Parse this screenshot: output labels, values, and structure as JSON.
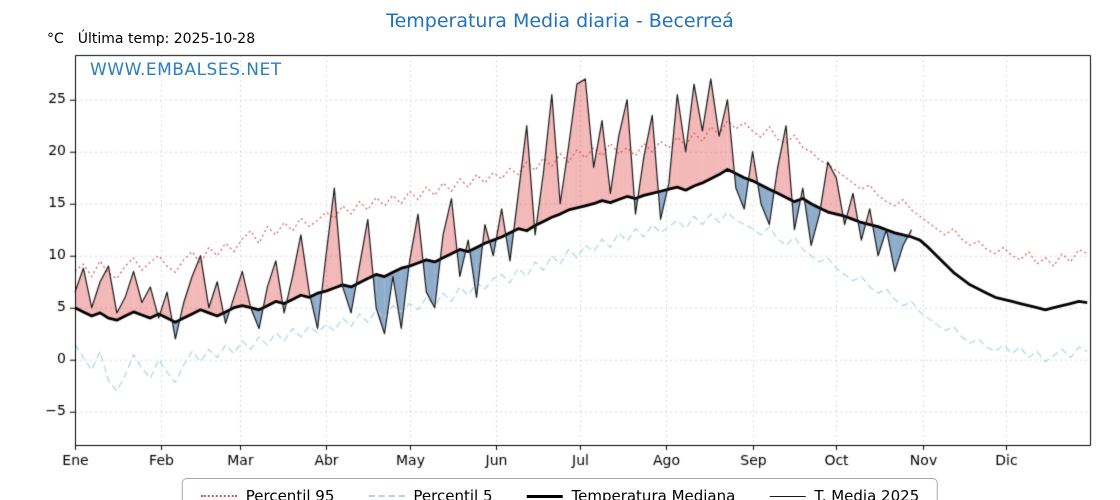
{
  "header": {
    "title": "Temperatura Media diaria - Becerreá",
    "y_unit": "°C",
    "last_temp_label": "Última temp: 2025-10-28",
    "watermark": "WWW.EMBALSES.NET"
  },
  "colors": {
    "title_blue": "#2273b8",
    "watermark_blue": "#2b7fbe",
    "grid": "#d9d9d9",
    "axis": "#000000"
  },
  "legend": {
    "items": [
      {
        "label": "Percentil 95"
      },
      {
        "label": "Percentil 5"
      },
      {
        "label": "Temperatura Mediana"
      },
      {
        "label": "T. Media 2025"
      }
    ]
  },
  "chart_data": {
    "type": "line",
    "title": "Temperatura Media diaria - Becerreá",
    "xlabel": "",
    "ylabel": "°C",
    "x_months": [
      "Ene",
      "Feb",
      "Mar",
      "Abr",
      "May",
      "Jun",
      "Jul",
      "Ago",
      "Sep",
      "Oct",
      "Nov",
      "Dic"
    ],
    "month_start_days": [
      1,
      32,
      60,
      91,
      121,
      152,
      182,
      213,
      244,
      274,
      305,
      335
    ],
    "days_in_year": 365,
    "yticks": [
      -5,
      0,
      5,
      10,
      15,
      20,
      25
    ],
    "ylim": [
      -8.2,
      29.3
    ],
    "grid": true,
    "legend_position": "bottom",
    "sample_step_days": 3,
    "fills": {
      "above_color": "rgba(228,98,98,0.45)",
      "below_color": "rgba(73,121,173,0.62)",
      "description": "area between T. Media 2025 and Temperatura Mediana; red when 2025 above median, blue when below"
    },
    "series": [
      {
        "name": "Percentil 95",
        "style": "dotted",
        "color": "#dd5353",
        "width": 1.2,
        "values": [
          8.5,
          9.2,
          8.0,
          9.5,
          8.3,
          7.8,
          9.0,
          9.8,
          8.6,
          9.4,
          10.0,
          9.0,
          8.4,
          9.6,
          10.4,
          9.2,
          10.8,
          10.0,
          11.2,
          10.4,
          11.6,
          12.4,
          11.2,
          12.8,
          12.0,
          13.2,
          12.4,
          13.6,
          12.8,
          13.4,
          14.2,
          13.6,
          14.8,
          14.0,
          15.2,
          14.4,
          15.6,
          14.8,
          15.8,
          15.0,
          16.2,
          15.4,
          16.6,
          15.8,
          17.0,
          16.2,
          17.4,
          16.6,
          17.8,
          17.0,
          18.0,
          17.4,
          18.4,
          17.8,
          19.0,
          18.2,
          19.4,
          18.6,
          19.8,
          19.0,
          20.2,
          19.4,
          20.4,
          19.6,
          20.8,
          19.8,
          20.4,
          19.6,
          20.8,
          20.0,
          21.0,
          20.4,
          21.4,
          20.6,
          21.8,
          21.0,
          22.4,
          21.6,
          23.0,
          22.2,
          22.8,
          22.0,
          21.4,
          22.4,
          21.2,
          20.8,
          21.6,
          20.4,
          20.0,
          19.2,
          18.8,
          18.2,
          17.6,
          17.0,
          16.4,
          16.8,
          15.8,
          15.2,
          14.8,
          15.4,
          14.4,
          13.8,
          13.2,
          12.6,
          12.0,
          12.6,
          11.6,
          11.0,
          11.4,
          10.6,
          10.2,
          10.8,
          10.0,
          9.6,
          10.4,
          9.2,
          9.8,
          9.0,
          10.2,
          9.4,
          10.6,
          10.2
        ]
      },
      {
        "name": "Percentil 5",
        "style": "dashed",
        "color": "#a9d6e8",
        "width": 1.2,
        "values": [
          1.5,
          0.2,
          -1.0,
          0.8,
          -2.0,
          -3.0,
          -1.5,
          0.5,
          -0.8,
          -1.8,
          0.0,
          -1.2,
          -2.2,
          -0.5,
          0.8,
          -0.2,
          1.0,
          0.2,
          1.4,
          0.6,
          1.8,
          1.0,
          2.2,
          1.4,
          2.6,
          1.8,
          3.0,
          2.2,
          3.2,
          2.6,
          3.4,
          2.8,
          4.0,
          3.2,
          4.4,
          3.6,
          4.8,
          4.0,
          5.2,
          4.6,
          5.4,
          4.8,
          6.0,
          5.2,
          6.4,
          5.6,
          7.0,
          6.2,
          7.4,
          6.8,
          7.8,
          8.2,
          7.4,
          8.8,
          8.0,
          9.4,
          8.6,
          10.0,
          9.2,
          10.6,
          9.8,
          11.0,
          10.4,
          11.6,
          10.8,
          12.2,
          11.4,
          12.6,
          11.8,
          13.0,
          12.2,
          12.8,
          13.4,
          12.6,
          13.8,
          13.0,
          14.0,
          13.2,
          14.2,
          13.4,
          13.0,
          12.6,
          12.0,
          12.8,
          11.6,
          11.0,
          11.8,
          10.6,
          10.0,
          9.4,
          9.8,
          8.8,
          8.2,
          7.6,
          8.0,
          7.0,
          6.4,
          6.8,
          5.8,
          5.2,
          5.6,
          4.6,
          4.0,
          3.4,
          2.8,
          3.2,
          2.2,
          1.6,
          2.0,
          1.2,
          0.8,
          1.4,
          0.6,
          1.2,
          0.2,
          0.8,
          -0.2,
          0.4,
          1.0,
          0.2,
          1.2,
          0.8
        ]
      },
      {
        "name": "Temperatura Mediana",
        "style": "solid-thick",
        "color": "#000000",
        "width": 2.8,
        "values": [
          5.0,
          4.6,
          4.2,
          4.5,
          4.0,
          3.8,
          4.2,
          4.6,
          4.3,
          4.0,
          4.4,
          4.0,
          3.6,
          4.0,
          4.4,
          4.8,
          4.5,
          4.2,
          4.6,
          5.0,
          5.2,
          5.0,
          4.8,
          5.2,
          5.6,
          5.4,
          5.8,
          6.2,
          6.0,
          6.4,
          6.6,
          6.9,
          7.2,
          7.0,
          7.4,
          7.8,
          8.2,
          8.0,
          8.4,
          8.8,
          9.0,
          9.3,
          9.6,
          9.4,
          9.8,
          10.2,
          10.6,
          10.4,
          10.8,
          11.2,
          11.5,
          11.8,
          12.2,
          12.6,
          12.4,
          12.9,
          13.3,
          13.7,
          14.0,
          14.4,
          14.6,
          14.8,
          15.0,
          15.3,
          15.1,
          15.4,
          15.7,
          15.5,
          15.8,
          16.0,
          16.2,
          16.4,
          16.6,
          16.3,
          16.7,
          17.0,
          17.4,
          17.8,
          18.3,
          17.9,
          17.5,
          17.2,
          16.8,
          16.4,
          16.0,
          15.6,
          15.2,
          15.5,
          15.0,
          14.6,
          14.2,
          14.0,
          13.8,
          13.5,
          13.2,
          13.0,
          12.8,
          12.5,
          12.2,
          12.0,
          11.8,
          11.5,
          10.8,
          10.0,
          9.2,
          8.4,
          7.8,
          7.2,
          6.8,
          6.4,
          6.0,
          5.8,
          5.6,
          5.4,
          5.2,
          5.0,
          4.8,
          5.0,
          5.2,
          5.4,
          5.6,
          5.5
        ]
      },
      {
        "name": "T. Media 2025",
        "style": "solid-thin",
        "color": "#1a1a1a",
        "width": 1.2,
        "values": [
          6.5,
          8.8,
          5.0,
          7.5,
          9.0,
          4.5,
          6.0,
          8.5,
          5.5,
          7.0,
          4.0,
          6.5,
          2.0,
          5.5,
          8.0,
          10.0,
          5.0,
          7.5,
          3.5,
          6.0,
          8.5,
          5.0,
          3.0,
          7.0,
          9.5,
          4.5,
          8.0,
          12.0,
          6.5,
          3.0,
          10.0,
          16.5,
          7.0,
          4.5,
          9.0,
          13.5,
          5.0,
          2.5,
          8.0,
          3.0,
          9.5,
          14.0,
          6.5,
          5.0,
          12.0,
          15.5,
          8.0,
          11.5,
          6.0,
          13.0,
          10.0,
          14.5,
          9.5,
          16.0,
          22.5,
          12.0,
          18.0,
          25.5,
          15.0,
          20.5,
          26.5,
          27.0,
          18.5,
          23.0,
          16.0,
          21.5,
          25.0,
          14.0,
          19.5,
          23.5,
          13.5,
          17.0,
          25.5,
          20.0,
          26.5,
          22.0,
          27.0,
          21.5,
          25.0,
          16.5,
          14.5,
          20.0,
          15.0,
          13.0,
          18.5,
          22.5,
          12.5,
          16.5,
          11.0,
          14.0,
          19.0,
          17.5,
          13.0,
          16.0,
          11.5,
          14.5,
          10.0,
          12.5,
          8.5,
          11.0,
          12.5
        ]
      }
    ]
  }
}
